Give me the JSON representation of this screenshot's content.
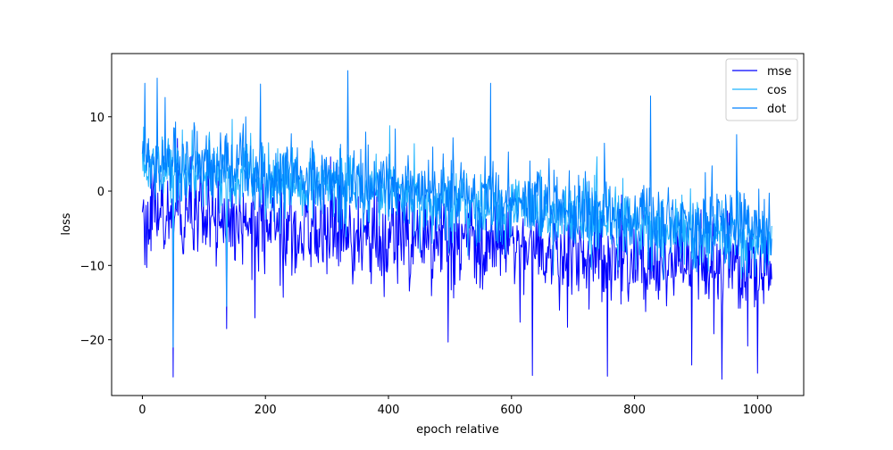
{
  "chart_data": {
    "type": "line",
    "title": "",
    "xlabel": "epoch relative",
    "ylabel": "loss",
    "xlim": [
      -50,
      1075
    ],
    "ylim": [
      -27.5,
      18.5
    ],
    "x_ticks": [
      0,
      200,
      400,
      600,
      800,
      1000
    ],
    "y_ticks": [
      -20,
      -10,
      0,
      10
    ],
    "grid": false,
    "legend": "top-right",
    "x_range": [
      0,
      1023
    ],
    "series": [
      {
        "name": "mse",
        "color": "#0000ff",
        "trend_start": -3.5,
        "trend_end": -10.5,
        "noise": 3.0,
        "extremes": [
          {
            "x": 50,
            "y": -25
          },
          {
            "x": 137,
            "y": -18.5
          },
          {
            "x": 497,
            "y": -20.3
          },
          {
            "x": 634,
            "y": -24.8
          },
          {
            "x": 756,
            "y": -24.9
          },
          {
            "x": 893,
            "y": -23.4
          },
          {
            "x": 942,
            "y": -25.3
          },
          {
            "x": 1000,
            "y": -24.5
          }
        ]
      },
      {
        "name": "cos",
        "color": "#1eb4ff",
        "trend_start": 3.5,
        "trend_end": -6.5,
        "noise": 2.2,
        "extremes": [
          {
            "x": 50,
            "y": -21.0
          },
          {
            "x": 137,
            "y": -15.5
          }
        ]
      },
      {
        "name": "dot",
        "color": "#0080ff",
        "trend_start": 4.5,
        "trend_end": -5.5,
        "noise": 2.4,
        "extremes": [
          {
            "x": 4,
            "y": 14.5
          },
          {
            "x": 24,
            "y": 15.2
          },
          {
            "x": 192,
            "y": 14.4
          },
          {
            "x": 334,
            "y": 16.2
          },
          {
            "x": 566,
            "y": 14.5
          },
          {
            "x": 826,
            "y": 12.8
          },
          {
            "x": 966,
            "y": 7.6
          }
        ]
      }
    ]
  }
}
